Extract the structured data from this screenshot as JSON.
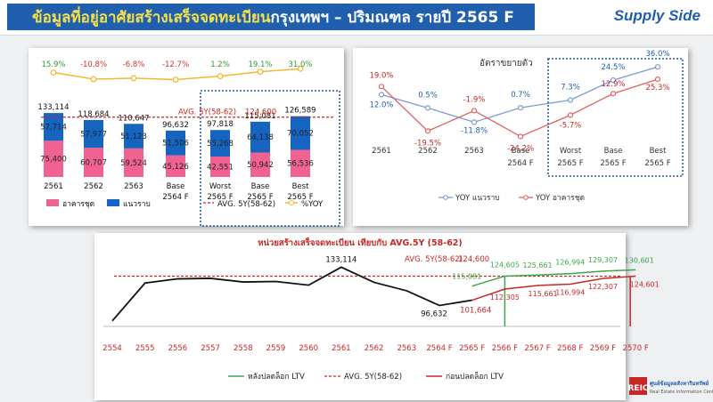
{
  "header": {
    "title_highlight": "ข้อมูลที่อยู่อาศัยสร้างเสร็จจดทะเบียน",
    "title_rest": " กรุงเทพฯ – ปริมณฑล รายปี 2565 F",
    "supply_side": "Supply Side"
  },
  "colors": {
    "header_bg": "#1f5fae",
    "condo": "#f06292",
    "lowrise": "#1565c0",
    "avg_line": "#c62828",
    "yoy_line": "#f5b731",
    "yoy_positive": "#2e9a2e",
    "yoy_negative": "#d32f2f",
    "forecast_box": "#1f4e9a",
    "post_ltv": "#3fa34d",
    "pre_ltv": "#c62828"
  },
  "chart_data": [
    {
      "type": "bar",
      "categories": [
        {
          "line1": "2561",
          "line2": ""
        },
        {
          "line1": "2562",
          "line2": ""
        },
        {
          "line1": "2563",
          "line2": ""
        },
        {
          "line1": "Base",
          "line2": "2564 F"
        },
        {
          "line1": "Worst",
          "line2": "2565 F"
        },
        {
          "line1": "Base",
          "line2": "2565 F"
        },
        {
          "line1": "Best",
          "line2": "2565 F"
        }
      ],
      "series": [
        {
          "name": "อาคารชุด",
          "values": [
            75400,
            60707,
            59524,
            45126,
            42551,
            50942,
            56536
          ],
          "labels": [
            "75,400",
            "60,707",
            "59,524",
            "45,126",
            "42,551",
            "50,942",
            "56,536"
          ]
        },
        {
          "name": "แนวราบ",
          "values": [
            57714,
            57977,
            51123,
            51506,
            55268,
            64138,
            70052
          ],
          "labels": [
            "57,714",
            "57,977",
            "51,123",
            "51,506",
            "55,268",
            "64,138",
            "70,052"
          ]
        }
      ],
      "totals": [
        133114,
        118684,
        110647,
        96632,
        97818,
        115081,
        126589
      ],
      "total_labels": [
        "133,114",
        "118,684",
        "110,647",
        "96,632",
        "97,818",
        "115,081",
        "126,589"
      ],
      "yoy_series": {
        "name": "%YOY",
        "values": [
          15.9,
          -10.8,
          -6.8,
          -12.7,
          1.2,
          19.1,
          31.0
        ],
        "labels": [
          "15.9%",
          "-10.8%",
          "-6.8%",
          "-12.7%",
          "1.2%",
          "19.1%",
          "31.0%"
        ]
      },
      "avg_line": {
        "name": "AVG. 5Y(58-62)",
        "value": 124600,
        "label": "AVG. 5Y(58-62)",
        "value_label": "124,600"
      },
      "forecast_categories": [
        "Worst",
        "Base",
        "Best"
      ]
    },
    {
      "type": "line",
      "title": "อัตราขยายตัว",
      "categories": [
        {
          "line1": "2561",
          "line2": ""
        },
        {
          "line1": "2562",
          "line2": ""
        },
        {
          "line1": "2563",
          "line2": ""
        },
        {
          "line1": "Base",
          "line2": "2564 F"
        },
        {
          "line1": "Worst",
          "line2": "2565 F"
        },
        {
          "line1": "Base",
          "line2": "2565 F"
        },
        {
          "line1": "Best",
          "line2": "2565 F"
        }
      ],
      "series": [
        {
          "name": "YOY แนวราบ",
          "values": [
            12.0,
            0.5,
            -11.8,
            0.7,
            7.3,
            24.5,
            36.0
          ],
          "labels": [
            "12.0%",
            "0.5%",
            "-11.8%",
            "0.7%",
            "7.3%",
            "24.5%",
            "36.0%"
          ],
          "color": "#7b9ad4"
        },
        {
          "name": "YOY อาคารชุด",
          "values": [
            19.0,
            -19.5,
            -1.9,
            -24.2,
            -5.7,
            12.9,
            25.3
          ],
          "labels": [
            "19.0%",
            "-19.5%",
            "-1.9%",
            "-24.2%",
            "-5.7%",
            "12.9%",
            "25.3%"
          ],
          "color": "#e06060"
        }
      ]
    },
    {
      "type": "line",
      "title": "หน่วยสร้างเสร็จจดทะเบียน เทียบกับ AVG.5Y (58-62)",
      "x": [
        "2554",
        "2555",
        "2556",
        "2557",
        "2558",
        "2559",
        "2560",
        "2561",
        "2562",
        "2563",
        "2564 F",
        "2565 F",
        "2566 F",
        "2567 F",
        "2568 F",
        "2569 F",
        "2570 F"
      ],
      "history": {
        "values": [
          82000,
          118000,
          122000,
          122500,
          119000,
          119500,
          116000,
          133114,
          118684,
          110647,
          96632,
          101664
        ],
        "labels": {
          "2561": "133,114",
          "2564 F": "96,632",
          "2565 F": "101,664"
        }
      },
      "post_ltv": {
        "name": "หลังปลดล็อก LTV",
        "values": {
          "2565 F": 115081,
          "2566 F": 124605,
          "2567 F": 125661,
          "2568 F": 126994,
          "2569 F": 129307,
          "2570 F": 130601
        },
        "labels": [
          "115,081",
          "124,605",
          "125,661",
          "126,994",
          "129,307",
          "130,601"
        ]
      },
      "pre_ltv": {
        "name": "ก่อนปลดล็อก LTV",
        "values": {
          "2565 F": 101664,
          "2566 F": 112305,
          "2567 F": 115661,
          "2568 F": 116994,
          "2569 F": 122307,
          "2570 F": 124601
        },
        "labels": [
          "101,664",
          "112,305",
          "115,661",
          "116,994",
          "122,307",
          "124,601"
        ]
      },
      "avg_line": {
        "name": "AVG. 5Y(58-62)",
        "value": 124600,
        "label": "AVG. 5Y(58-62)",
        "value_label": "124,600"
      }
    }
  ],
  "logo": {
    "mark": "REIC",
    "line1": "ศูนย์ข้อมูลอสังหาริมทรัพย์",
    "line2": "Real Estate Information Center"
  }
}
